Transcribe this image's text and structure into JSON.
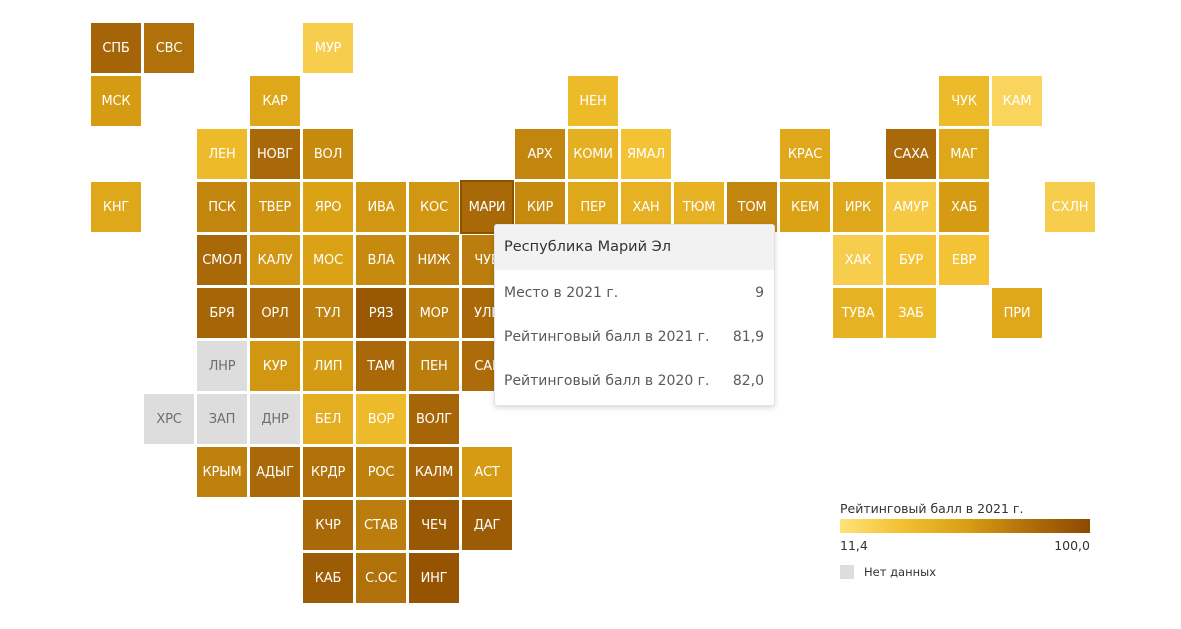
{
  "chart_data": {
    "type": "heatmap",
    "title": "",
    "legend": {
      "title": "Рейтинговый балл в 2021 г.",
      "min_label": "11,4",
      "max_label": "100,0",
      "min": 11.4,
      "max": 100.0,
      "nodata_label": "Нет данных",
      "colors": [
        "#ffe27a",
        "#f2c030",
        "#d9a014",
        "#b0700a",
        "#8c4a00"
      ],
      "nodata_color": "#dddddd"
    },
    "regions": [
      {
        "label": "СПБ",
        "row": 0,
        "col": 0,
        "value": 85
      },
      {
        "label": "СВС",
        "row": 0,
        "col": 1,
        "value": 78
      },
      {
        "label": "МУР",
        "row": 0,
        "col": 4,
        "value": 25
      },
      {
        "label": "МСК",
        "row": 1,
        "col": 0,
        "value": 58
      },
      {
        "label": "КАР",
        "row": 1,
        "col": 3,
        "value": 50
      },
      {
        "label": "НЕН",
        "row": 1,
        "col": 9,
        "value": 38
      },
      {
        "label": "ЧУК",
        "row": 1,
        "col": 16,
        "value": 38
      },
      {
        "label": "КАМ",
        "row": 1,
        "col": 17,
        "value": 20
      },
      {
        "label": "ЛЕН",
        "row": 2,
        "col": 2,
        "value": 38
      },
      {
        "label": "НОВГ",
        "row": 2,
        "col": 3,
        "value": 82
      },
      {
        "label": "ВОЛ",
        "row": 2,
        "col": 4,
        "value": 66
      },
      {
        "label": "АРХ",
        "row": 2,
        "col": 8,
        "value": 68
      },
      {
        "label": "КОМИ",
        "row": 2,
        "col": 9,
        "value": 45
      },
      {
        "label": "ЯМАЛ",
        "row": 2,
        "col": 10,
        "value": 32
      },
      {
        "label": "КРАС",
        "row": 2,
        "col": 13,
        "value": 50
      },
      {
        "label": "САХА",
        "row": 2,
        "col": 15,
        "value": 82
      },
      {
        "label": "МАГ",
        "row": 2,
        "col": 16,
        "value": 50
      },
      {
        "label": "КНГ",
        "row": 3,
        "col": 0,
        "value": 50
      },
      {
        "label": "ПСК",
        "row": 3,
        "col": 2,
        "value": 68
      },
      {
        "label": "ТВЕР",
        "row": 3,
        "col": 3,
        "value": 62
      },
      {
        "label": "ЯРО",
        "row": 3,
        "col": 4,
        "value": 54
      },
      {
        "label": "ИВА",
        "row": 3,
        "col": 5,
        "value": 60
      },
      {
        "label": "КОС",
        "row": 3,
        "col": 6,
        "value": 60
      },
      {
        "label": "МАРИ",
        "row": 3,
        "col": 7,
        "value": 81.9
      },
      {
        "label": "КИР",
        "row": 3,
        "col": 8,
        "value": 66
      },
      {
        "label": "ПЕР",
        "row": 3,
        "col": 9,
        "value": 50
      },
      {
        "label": "ХАН",
        "row": 3,
        "col": 10,
        "value": 44
      },
      {
        "label": "ТЮМ",
        "row": 3,
        "col": 11,
        "value": 44
      },
      {
        "label": "ТОМ",
        "row": 3,
        "col": 12,
        "value": 68
      },
      {
        "label": "КЕМ",
        "row": 3,
        "col": 13,
        "value": 54
      },
      {
        "label": "ИРК",
        "row": 3,
        "col": 14,
        "value": 50
      },
      {
        "label": "АМУР",
        "row": 3,
        "col": 15,
        "value": 28
      },
      {
        "label": "ХАБ",
        "row": 3,
        "col": 16,
        "value": 58
      },
      {
        "label": "СХЛН",
        "row": 3,
        "col": 18,
        "value": 25
      },
      {
        "label": "СМОЛ",
        "row": 4,
        "col": 2,
        "value": 82
      },
      {
        "label": "КАЛУ",
        "row": 4,
        "col": 3,
        "value": 60
      },
      {
        "label": "МОС",
        "row": 4,
        "col": 4,
        "value": 54
      },
      {
        "label": "ВЛА",
        "row": 4,
        "col": 5,
        "value": 66
      },
      {
        "label": "НИЖ",
        "row": 4,
        "col": 6,
        "value": 72
      },
      {
        "label": "ЧУВ",
        "row": 4,
        "col": 7,
        "value": 72
      },
      {
        "label": "ХАК",
        "row": 4,
        "col": 14,
        "value": 25
      },
      {
        "label": "БУР",
        "row": 4,
        "col": 15,
        "value": 32
      },
      {
        "label": "ЕВР",
        "row": 4,
        "col": 16,
        "value": 32
      },
      {
        "label": "БРЯ",
        "row": 5,
        "col": 2,
        "value": 84
      },
      {
        "label": "ОРЛ",
        "row": 5,
        "col": 3,
        "value": 80
      },
      {
        "label": "ТУЛ",
        "row": 5,
        "col": 4,
        "value": 70
      },
      {
        "label": "РЯЗ",
        "row": 5,
        "col": 5,
        "value": 92
      },
      {
        "label": "МОР",
        "row": 5,
        "col": 6,
        "value": 72
      },
      {
        "label": "УЛЬ",
        "row": 5,
        "col": 7,
        "value": 82
      },
      {
        "label": "ТУВА",
        "row": 5,
        "col": 14,
        "value": 44
      },
      {
        "label": "ЗАБ",
        "row": 5,
        "col": 15,
        "value": 38
      },
      {
        "label": "ПРИ",
        "row": 5,
        "col": 17,
        "value": 50
      },
      {
        "label": "ЛНР",
        "row": 6,
        "col": 2,
        "value": null
      },
      {
        "label": "КУР",
        "row": 6,
        "col": 3,
        "value": 60
      },
      {
        "label": "ЛИП",
        "row": 6,
        "col": 4,
        "value": 58
      },
      {
        "label": "ТАМ",
        "row": 6,
        "col": 5,
        "value": 82
      },
      {
        "label": "ПЕН",
        "row": 6,
        "col": 6,
        "value": 72
      },
      {
        "label": "САР",
        "row": 6,
        "col": 7,
        "value": 80
      },
      {
        "label": "ХРС",
        "row": 7,
        "col": 1,
        "value": null
      },
      {
        "label": "ЗАП",
        "row": 7,
        "col": 2,
        "value": null
      },
      {
        "label": "ДНР",
        "row": 7,
        "col": 3,
        "value": null
      },
      {
        "label": "БЕЛ",
        "row": 7,
        "col": 4,
        "value": 46
      },
      {
        "label": "ВОР",
        "row": 7,
        "col": 5,
        "value": 38
      },
      {
        "label": "ВОЛГ",
        "row": 7,
        "col": 6,
        "value": 84
      },
      {
        "label": "КРЫМ",
        "row": 8,
        "col": 2,
        "value": 70
      },
      {
        "label": "АДЫГ",
        "row": 8,
        "col": 3,
        "value": 82
      },
      {
        "label": "КРДР",
        "row": 8,
        "col": 4,
        "value": 78
      },
      {
        "label": "РОС",
        "row": 8,
        "col": 5,
        "value": 70
      },
      {
        "label": "КАЛМ",
        "row": 8,
        "col": 6,
        "value": 84
      },
      {
        "label": "АСТ",
        "row": 8,
        "col": 7,
        "value": 58
      },
      {
        "label": "КЧР",
        "row": 9,
        "col": 4,
        "value": 82
      },
      {
        "label": "СТАВ",
        "row": 9,
        "col": 5,
        "value": 72
      },
      {
        "label": "ЧЕЧ",
        "row": 9,
        "col": 6,
        "value": 92
      },
      {
        "label": "ДАГ",
        "row": 9,
        "col": 7,
        "value": 90
      },
      {
        "label": "КАБ",
        "row": 10,
        "col": 4,
        "value": 90
      },
      {
        "label": "С.ОС",
        "row": 10,
        "col": 5,
        "value": 78
      },
      {
        "label": "ИНГ",
        "row": 10,
        "col": 6,
        "value": 94
      }
    ],
    "tooltip": {
      "selected": "МАРИ",
      "title": "Республика Марий Эл",
      "rows": [
        {
          "label": "Место в 2021 г.",
          "value": "9"
        },
        {
          "label": "Рейтинговый балл в 2021 г.",
          "value": "81,9"
        },
        {
          "label": "Рейтинговый балл в 2020 г.",
          "value": "82,0"
        }
      ]
    }
  }
}
